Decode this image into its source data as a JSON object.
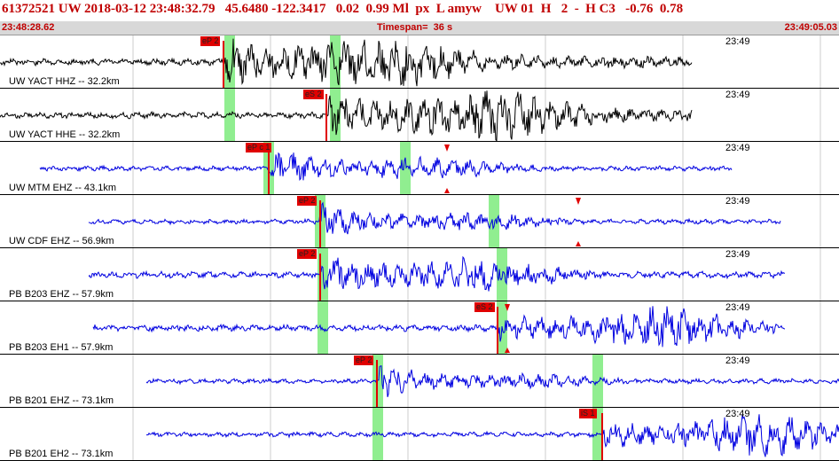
{
  "header": {
    "title": "61372521 UW 2018-03-12 23:48:32.79   45.6480 -122.3417   0.02  0.99 Ml  px  L amyw    UW 01  H   2  -  H C3   -0.76  0.78",
    "start_time": "23:48:28.62",
    "timespan": "Timespan=  36 s",
    "end_time": "23:49:05.03"
  },
  "tick_label": "23:49",
  "traces": [
    {
      "station": "UW YACT HHZ -- 32.2km",
      "color": "#000000",
      "picks": [
        {
          "label": "eP 2"
        }
      ]
    },
    {
      "station": "UW YACT HHE -- 32.2km",
      "color": "#000000",
      "picks": [
        {
          "label": "eS 2"
        }
      ]
    },
    {
      "station": "UW MTM EHZ -- 43.1km",
      "color": "#0000e0",
      "picks": [
        {
          "label": "eP c 1"
        }
      ]
    },
    {
      "station": "UW CDF EHZ -- 56.9km",
      "color": "#0000e0",
      "picks": [
        {
          "label": "eP 2"
        }
      ]
    },
    {
      "station": "PB B203 EHZ -- 57.9km",
      "color": "#0000e0",
      "picks": [
        {
          "label": "eP 2"
        }
      ]
    },
    {
      "station": "PB B203 EH1 -- 57.9km",
      "color": "#0000e0",
      "picks": [
        {
          "label": "eS 2"
        }
      ]
    },
    {
      "station": "PB B201 EHZ -- 73.1km",
      "color": "#0000e0",
      "picks": [
        {
          "label": "eP 2"
        }
      ]
    },
    {
      "station": "PB B201 EH2 -- 73.1km",
      "color": "#0000e0",
      "picks": [
        {
          "label": "iS 1"
        }
      ]
    }
  ],
  "colors": {
    "theory_band": "#90ee90",
    "pick": "#e00000",
    "header_text": "#c00000",
    "grid": "#cccccc"
  }
}
